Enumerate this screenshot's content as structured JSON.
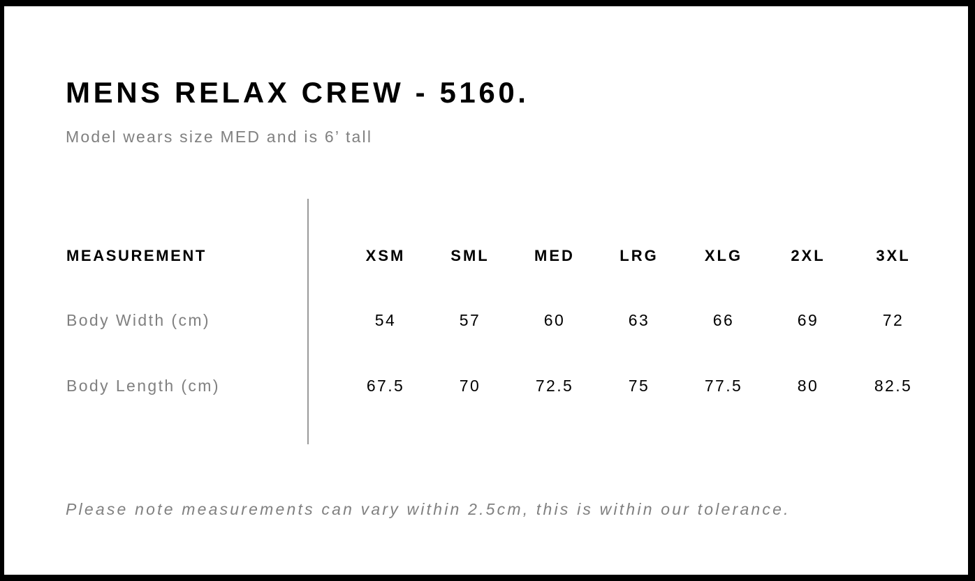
{
  "title": "MENS RELAX CREW - 5160.",
  "subtitle": "Model wears size MED and is 6’ tall",
  "table": {
    "header_label": "MEASUREMENT",
    "sizes": [
      "XSM",
      "SML",
      "MED",
      "LRG",
      "XLG",
      "2XL",
      "3XL"
    ],
    "rows": [
      {
        "label": "Body Width (cm)",
        "values": [
          "54",
          "57",
          "60",
          "63",
          "66",
          "69",
          "72"
        ]
      },
      {
        "label": "Body Length (cm)",
        "values": [
          "67.5",
          "70",
          "72.5",
          "75",
          "77.5",
          "80",
          "82.5"
        ]
      }
    ]
  },
  "note": "Please note measurements can vary within 2.5cm, this is within our tolerance."
}
